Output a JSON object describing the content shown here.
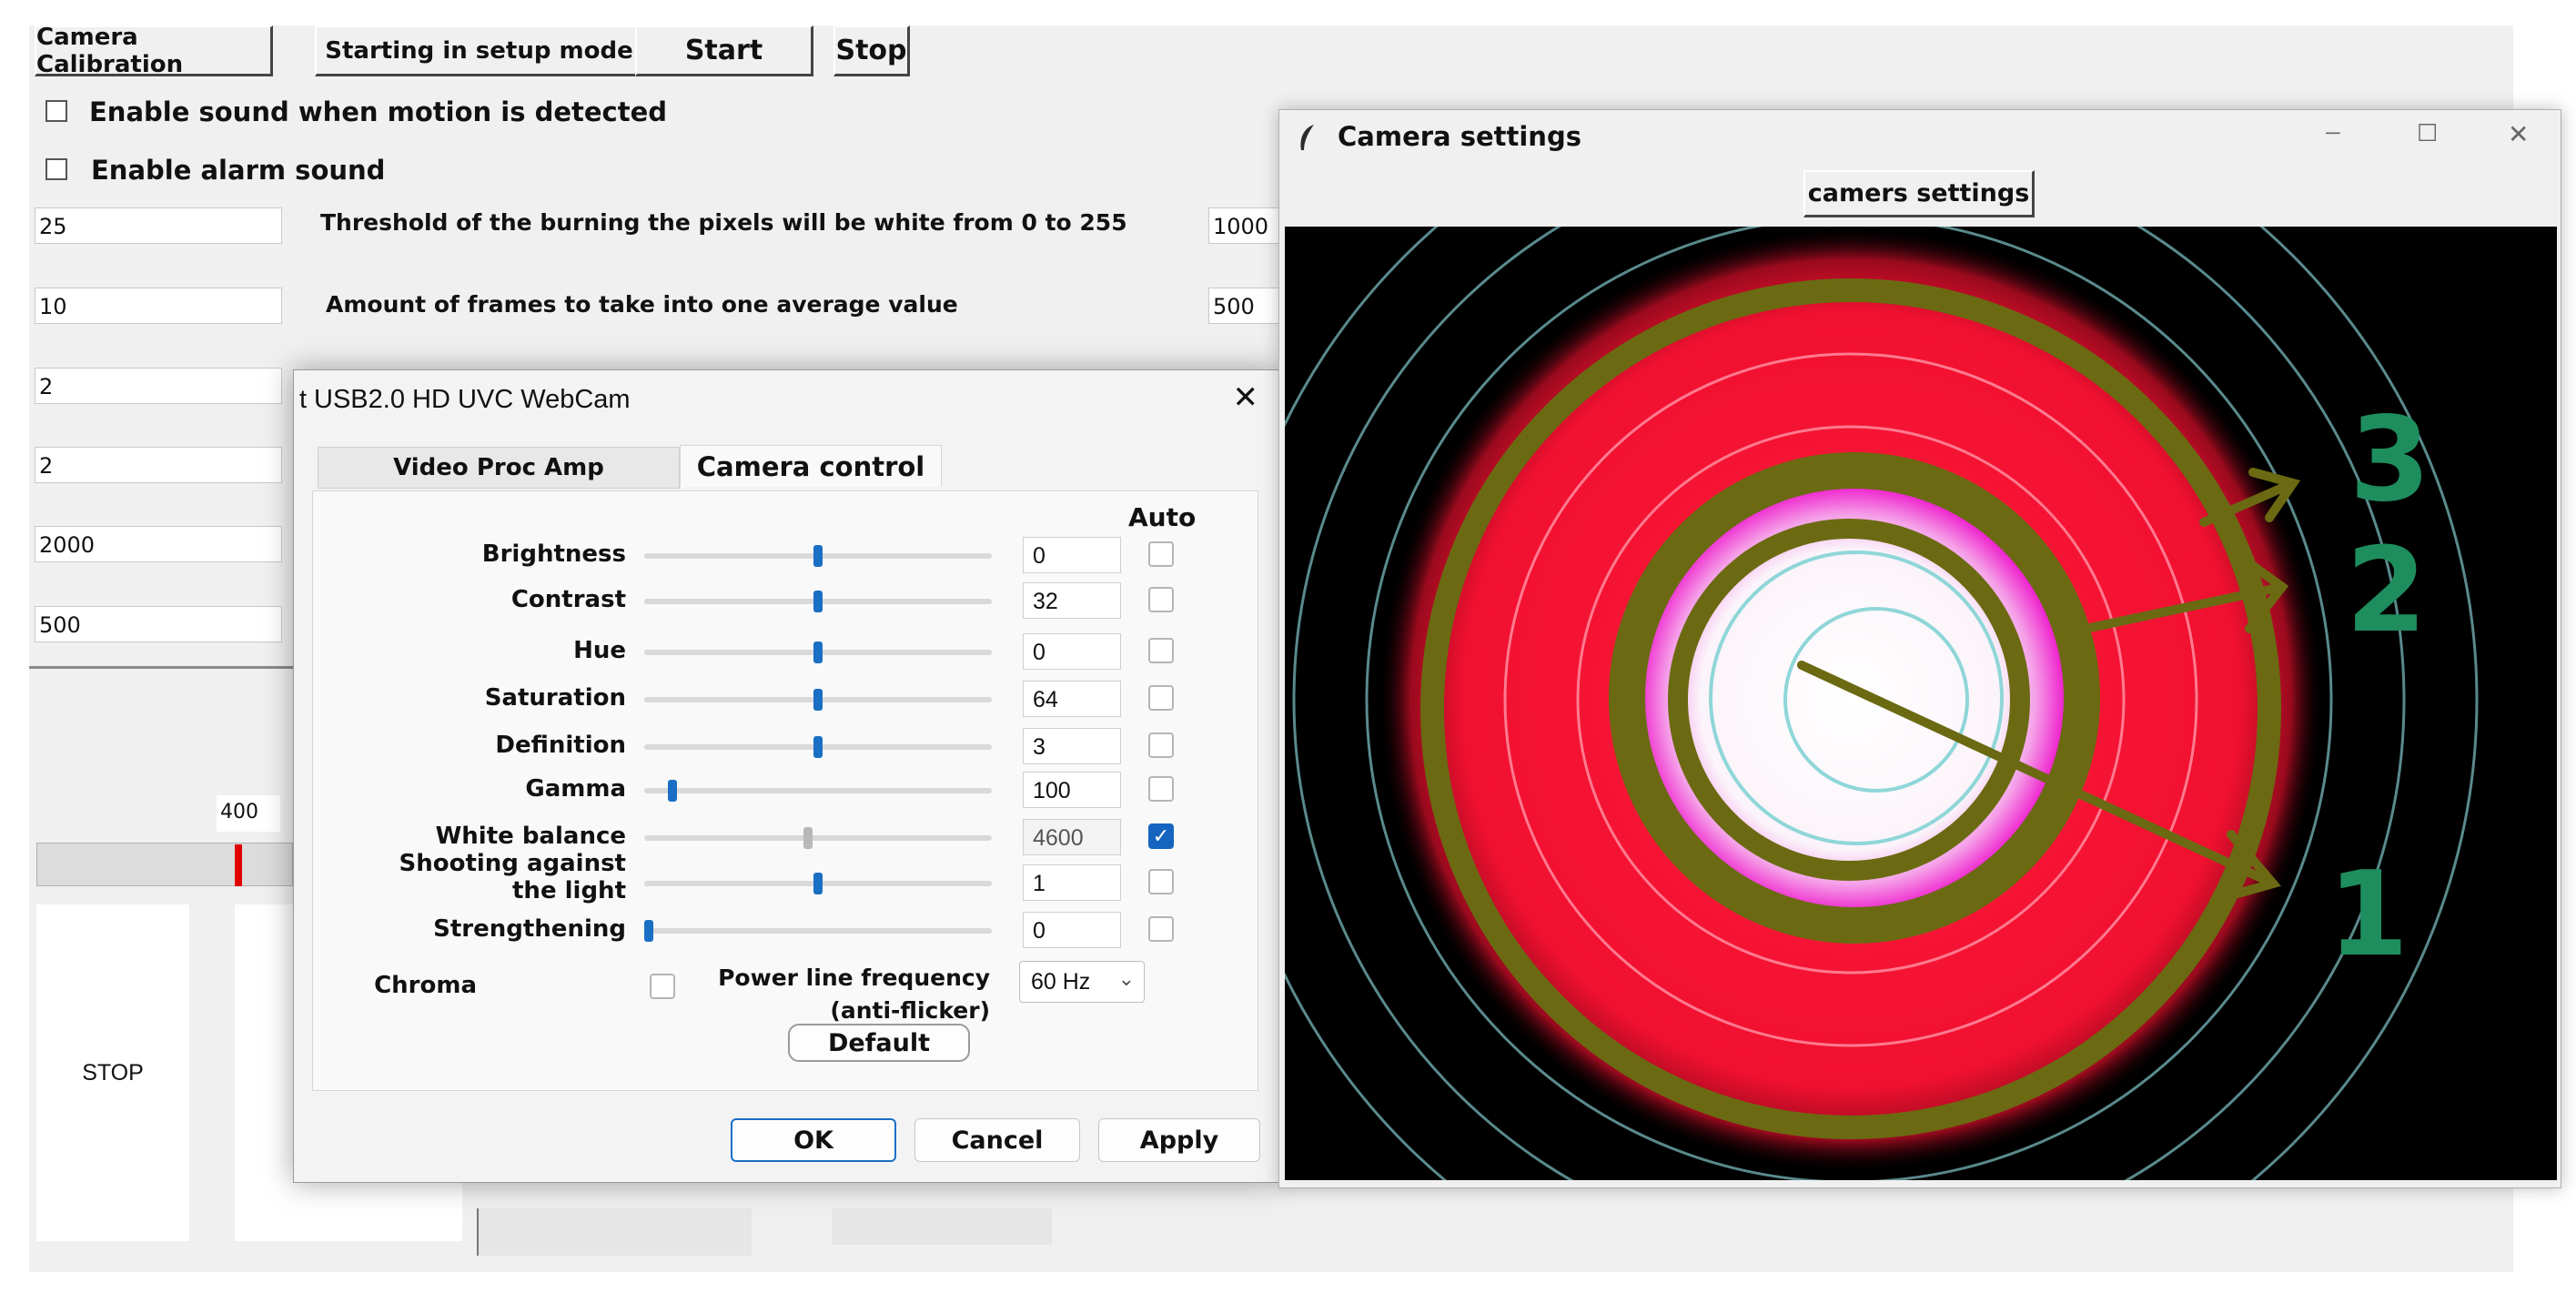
{
  "app": {
    "buttons": {
      "calibration": "Camera Calibration",
      "setup": "Starting in setup mode",
      "start": "Start",
      "stop": "Stop"
    },
    "checks": {
      "sound_motion": "Enable sound when motion is detected",
      "alarm": "Enable alarm sound"
    },
    "params": [
      {
        "value": "25",
        "label": "Threshold of the burning the pixels will be white from 0 to 255",
        "right_value": "1000"
      },
      {
        "value": "10",
        "label": "Amount of frames to take into one average value",
        "right_value": "500"
      },
      {
        "value": "2"
      },
      {
        "value": "2"
      },
      {
        "value": "2000"
      },
      {
        "value": "500"
      }
    ],
    "scale_value": "400",
    "stop_panel": "STOP"
  },
  "dialog": {
    "title": "USB2.0 HD UVC WebCam",
    "title_prefix": "t",
    "close": "✕",
    "tabs": [
      "Video Proc Amp",
      "Camera control"
    ],
    "auto_header": "Auto",
    "rows": [
      {
        "label": "Brightness",
        "value": "0",
        "level": 0.5,
        "auto": false,
        "disabled": false
      },
      {
        "label": "Contrast",
        "value": "32",
        "level": 0.5,
        "auto": false,
        "disabled": false
      },
      {
        "label": "Hue",
        "value": "0",
        "level": 0.5,
        "auto": false,
        "disabled": false
      },
      {
        "label": "Saturation",
        "value": "64",
        "level": 0.5,
        "auto": false,
        "disabled": false
      },
      {
        "label": "Definition",
        "value": "3",
        "level": 0.5,
        "auto": false,
        "disabled": false
      },
      {
        "label": "Gamma",
        "value": "100",
        "level": 0.07,
        "auto": false,
        "disabled": false
      },
      {
        "label": "White balance",
        "value": "4600",
        "level": 0.47,
        "auto": true,
        "disabled": true
      },
      {
        "label": "Shooting against the light",
        "value": "1",
        "level": 0.5,
        "auto": false,
        "disabled": false
      },
      {
        "label": "Strengthening",
        "value": "0",
        "level": 0.0,
        "auto": false,
        "disabled": false
      }
    ],
    "chroma": "Chroma",
    "powerline_label_1": "Power line frequency",
    "powerline_label_2": "(anti-flicker)",
    "powerline_value": "60 Hz",
    "default_btn": "Default",
    "ok": "OK",
    "cancel": "Cancel",
    "apply": "Apply"
  },
  "camera_window": {
    "title": "Camera settings",
    "button": "camers settings",
    "min": "─",
    "max": "☐",
    "close": "✕",
    "ring_labels": [
      "3",
      "2",
      "1"
    ]
  }
}
